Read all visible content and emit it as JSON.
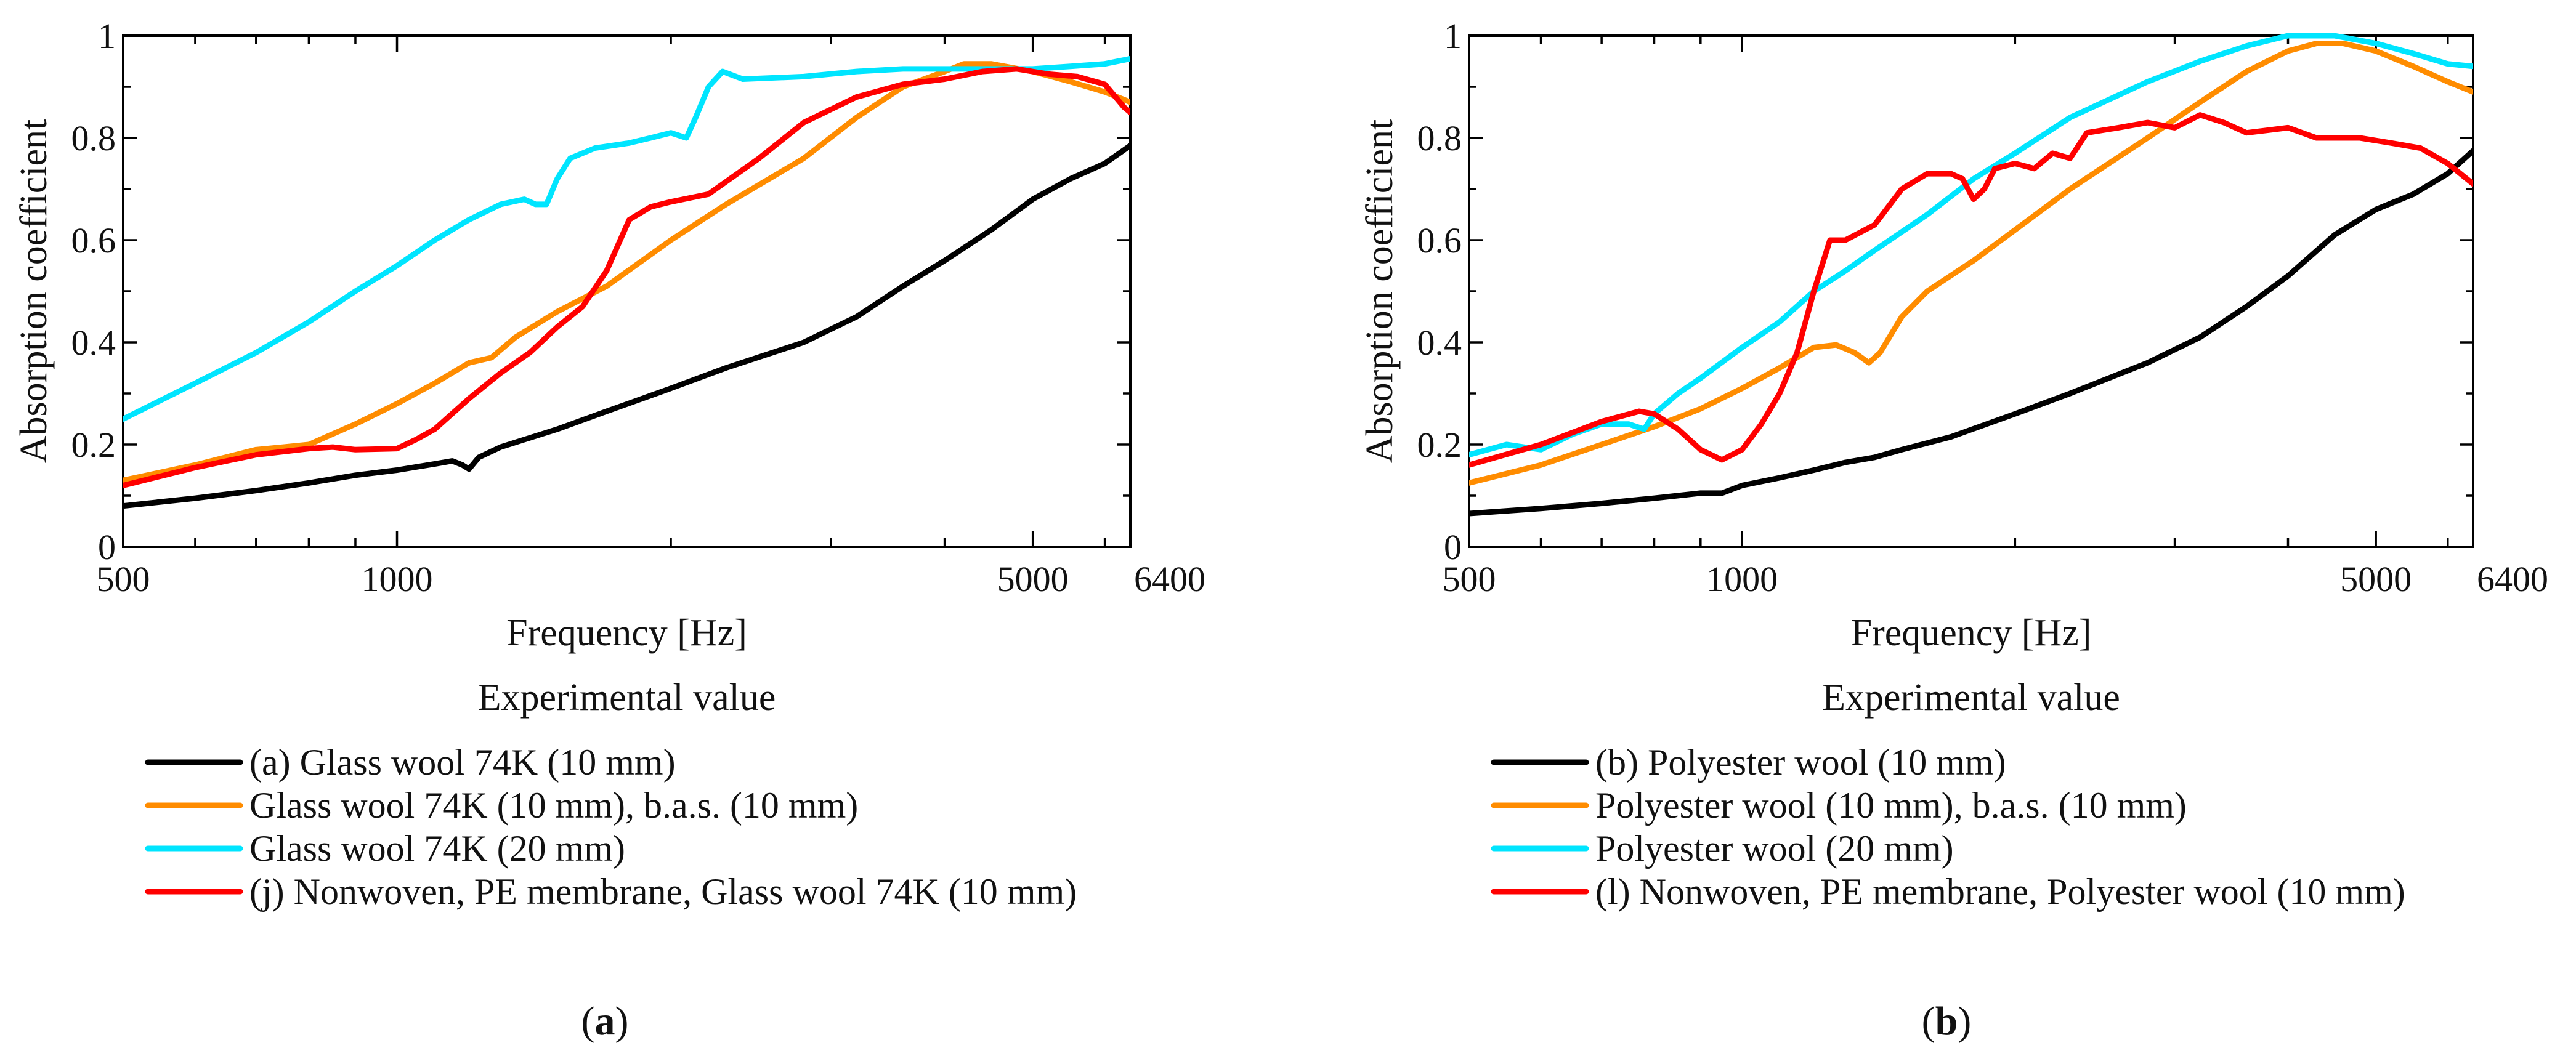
{
  "chart_data": [
    {
      "type": "line",
      "panel_label": "a",
      "subtitle": "Experimental value",
      "xlabel": "Frequency [Hz]",
      "ylabel": "Absorption coefficient",
      "xscale": "log",
      "xlim": [
        500,
        6400
      ],
      "ylim": [
        0,
        1
      ],
      "xticks": [
        500,
        1000,
        5000,
        6400
      ],
      "yticks": [
        0,
        0.2,
        0.4,
        0.6,
        0.8,
        1
      ],
      "ytick_labels": [
        "0",
        "0.2",
        "0.4",
        "0.6",
        "0.8",
        "1"
      ],
      "legend_position": "below",
      "series": [
        {
          "name": "(a) Glass wool 74K (10 mm)",
          "color": "#000000",
          "points": [
            [
              500,
              0.08
            ],
            [
              600,
              0.095
            ],
            [
              700,
              0.11
            ],
            [
              800,
              0.125
            ],
            [
              900,
              0.14
            ],
            [
              1000,
              0.15
            ],
            [
              1100,
              0.162
            ],
            [
              1150,
              0.168
            ],
            [
              1180,
              0.16
            ],
            [
              1200,
              0.152
            ],
            [
              1230,
              0.175
            ],
            [
              1300,
              0.195
            ],
            [
              1500,
              0.23
            ],
            [
              1700,
              0.265
            ],
            [
              2000,
              0.31
            ],
            [
              2300,
              0.35
            ],
            [
              2800,
              0.4
            ],
            [
              3200,
              0.45
            ],
            [
              3600,
              0.51
            ],
            [
              4000,
              0.56
            ],
            [
              4500,
              0.62
            ],
            [
              5000,
              0.68
            ],
            [
              5500,
              0.72
            ],
            [
              6000,
              0.75
            ],
            [
              6400,
              0.785
            ]
          ]
        },
        {
          "name": "Glass wool 74K (10 mm), b.a.s. (10 mm)",
          "color": "#ff8c00",
          "points": [
            [
              500,
              0.13
            ],
            [
              600,
              0.16
            ],
            [
              700,
              0.19
            ],
            [
              750,
              0.195
            ],
            [
              800,
              0.2
            ],
            [
              900,
              0.24
            ],
            [
              1000,
              0.28
            ],
            [
              1100,
              0.32
            ],
            [
              1200,
              0.36
            ],
            [
              1270,
              0.37
            ],
            [
              1350,
              0.41
            ],
            [
              1500,
              0.46
            ],
            [
              1700,
              0.51
            ],
            [
              2000,
              0.6
            ],
            [
              2300,
              0.67
            ],
            [
              2800,
              0.76
            ],
            [
              3200,
              0.84
            ],
            [
              3600,
              0.9
            ],
            [
              4000,
              0.93
            ],
            [
              4200,
              0.945
            ],
            [
              4500,
              0.945
            ],
            [
              5000,
              0.93
            ],
            [
              5500,
              0.91
            ],
            [
              6000,
              0.89
            ],
            [
              6400,
              0.87
            ]
          ]
        },
        {
          "name": "Glass wool 74K (20 mm)",
          "color": "#00e5ff",
          "points": [
            [
              500,
              0.25
            ],
            [
              600,
              0.32
            ],
            [
              700,
              0.38
            ],
            [
              800,
              0.44
            ],
            [
              900,
              0.5
            ],
            [
              1000,
              0.55
            ],
            [
              1100,
              0.6
            ],
            [
              1200,
              0.64
            ],
            [
              1300,
              0.67
            ],
            [
              1380,
              0.68
            ],
            [
              1420,
              0.67
            ],
            [
              1460,
              0.67
            ],
            [
              1500,
              0.72
            ],
            [
              1550,
              0.76
            ],
            [
              1650,
              0.78
            ],
            [
              1800,
              0.79
            ],
            [
              1900,
              0.8
            ],
            [
              2000,
              0.81
            ],
            [
              2080,
              0.8
            ],
            [
              2130,
              0.84
            ],
            [
              2200,
              0.9
            ],
            [
              2280,
              0.93
            ],
            [
              2400,
              0.915
            ],
            [
              2800,
              0.92
            ],
            [
              3200,
              0.93
            ],
            [
              3600,
              0.935
            ],
            [
              4000,
              0.935
            ],
            [
              4500,
              0.935
            ],
            [
              5000,
              0.935
            ],
            [
              5500,
              0.94
            ],
            [
              6000,
              0.945
            ],
            [
              6400,
              0.955
            ]
          ]
        },
        {
          "name": "(j) Nonwoven, PE membrane, Glass wool 74K (10 mm)",
          "color": "#ff0000",
          "points": [
            [
              500,
              0.12
            ],
            [
              600,
              0.155
            ],
            [
              700,
              0.18
            ],
            [
              800,
              0.192
            ],
            [
              850,
              0.195
            ],
            [
              900,
              0.19
            ],
            [
              1000,
              0.192
            ],
            [
              1050,
              0.21
            ],
            [
              1100,
              0.23
            ],
            [
              1200,
              0.29
            ],
            [
              1300,
              0.34
            ],
            [
              1400,
              0.38
            ],
            [
              1500,
              0.43
            ],
            [
              1600,
              0.47
            ],
            [
              1700,
              0.54
            ],
            [
              1800,
              0.64
            ],
            [
              1900,
              0.665
            ],
            [
              2000,
              0.675
            ],
            [
              2200,
              0.69
            ],
            [
              2500,
              0.76
            ],
            [
              2800,
              0.83
            ],
            [
              3200,
              0.88
            ],
            [
              3600,
              0.905
            ],
            [
              4000,
              0.915
            ],
            [
              4400,
              0.93
            ],
            [
              4800,
              0.935
            ],
            [
              5200,
              0.925
            ],
            [
              5600,
              0.92
            ],
            [
              6000,
              0.905
            ],
            [
              6300,
              0.86
            ],
            [
              6400,
              0.85
            ]
          ]
        }
      ]
    },
    {
      "type": "line",
      "panel_label": "b",
      "subtitle": "Experimental value",
      "xlabel": "Frequency [Hz]",
      "ylabel": "Absorption coefficient",
      "xscale": "log",
      "xlim": [
        500,
        6400
      ],
      "ylim": [
        0,
        1
      ],
      "xticks": [
        500,
        1000,
        5000,
        6400
      ],
      "yticks": [
        0,
        0.2,
        0.4,
        0.6,
        0.8,
        1
      ],
      "ytick_labels": [
        "0",
        "0.2",
        "0.4",
        "0.6",
        "0.8",
        "1"
      ],
      "legend_position": "below",
      "series": [
        {
          "name": "(b) Polyester wool (10 mm)",
          "color": "#000000",
          "points": [
            [
              500,
              0.065
            ],
            [
              600,
              0.075
            ],
            [
              700,
              0.085
            ],
            [
              800,
              0.095
            ],
            [
              900,
              0.105
            ],
            [
              950,
              0.105
            ],
            [
              1000,
              0.12
            ],
            [
              1100,
              0.135
            ],
            [
              1200,
              0.15
            ],
            [
              1300,
              0.165
            ],
            [
              1400,
              0.175
            ],
            [
              1500,
              0.19
            ],
            [
              1700,
              0.215
            ],
            [
              2000,
              0.26
            ],
            [
              2300,
              0.3
            ],
            [
              2800,
              0.36
            ],
            [
              3200,
              0.41
            ],
            [
              3600,
              0.47
            ],
            [
              4000,
              0.53
            ],
            [
              4500,
              0.61
            ],
            [
              5000,
              0.66
            ],
            [
              5500,
              0.69
            ],
            [
              6000,
              0.73
            ],
            [
              6400,
              0.775
            ]
          ]
        },
        {
          "name": "Polyester wool (10 mm), b.a.s. (10 mm)",
          "color": "#ff8c00",
          "points": [
            [
              500,
              0.125
            ],
            [
              600,
              0.16
            ],
            [
              700,
              0.2
            ],
            [
              800,
              0.235
            ],
            [
              900,
              0.27
            ],
            [
              1000,
              0.31
            ],
            [
              1100,
              0.35
            ],
            [
              1200,
              0.39
            ],
            [
              1270,
              0.395
            ],
            [
              1330,
              0.38
            ],
            [
              1380,
              0.36
            ],
            [
              1420,
              0.38
            ],
            [
              1500,
              0.45
            ],
            [
              1600,
              0.5
            ],
            [
              1800,
              0.56
            ],
            [
              2000,
              0.62
            ],
            [
              2300,
              0.7
            ],
            [
              2800,
              0.8
            ],
            [
              3200,
              0.87
            ],
            [
              3600,
              0.93
            ],
            [
              4000,
              0.97
            ],
            [
              4300,
              0.985
            ],
            [
              4600,
              0.985
            ],
            [
              5000,
              0.97
            ],
            [
              5500,
              0.94
            ],
            [
              6000,
              0.91
            ],
            [
              6400,
              0.89
            ]
          ]
        },
        {
          "name": "Polyester wool (20 mm)",
          "color": "#00e5ff",
          "points": [
            [
              500,
              0.18
            ],
            [
              550,
              0.2
            ],
            [
              600,
              0.19
            ],
            [
              650,
              0.22
            ],
            [
              700,
              0.24
            ],
            [
              750,
              0.24
            ],
            [
              780,
              0.23
            ],
            [
              800,
              0.26
            ],
            [
              850,
              0.3
            ],
            [
              900,
              0.33
            ],
            [
              1000,
              0.39
            ],
            [
              1100,
              0.44
            ],
            [
              1200,
              0.5
            ],
            [
              1300,
              0.54
            ],
            [
              1400,
              0.58
            ],
            [
              1600,
              0.65
            ],
            [
              1800,
              0.72
            ],
            [
              2000,
              0.77
            ],
            [
              2300,
              0.84
            ],
            [
              2800,
              0.91
            ],
            [
              3200,
              0.95
            ],
            [
              3600,
              0.98
            ],
            [
              4000,
              1.0
            ],
            [
              4500,
              1.0
            ],
            [
              5000,
              0.985
            ],
            [
              5500,
              0.965
            ],
            [
              6000,
              0.945
            ],
            [
              6400,
              0.94
            ]
          ]
        },
        {
          "name": "(l) Nonwoven, PE membrane, Polyester wool (10 mm)",
          "color": "#ff0000",
          "points": [
            [
              500,
              0.16
            ],
            [
              600,
              0.2
            ],
            [
              700,
              0.245
            ],
            [
              770,
              0.265
            ],
            [
              800,
              0.26
            ],
            [
              850,
              0.23
            ],
            [
              900,
              0.19
            ],
            [
              950,
              0.17
            ],
            [
              1000,
              0.19
            ],
            [
              1050,
              0.24
            ],
            [
              1100,
              0.3
            ],
            [
              1150,
              0.38
            ],
            [
              1200,
              0.5
            ],
            [
              1250,
              0.6
            ],
            [
              1300,
              0.6
            ],
            [
              1400,
              0.63
            ],
            [
              1500,
              0.7
            ],
            [
              1600,
              0.73
            ],
            [
              1700,
              0.73
            ],
            [
              1750,
              0.72
            ],
            [
              1800,
              0.68
            ],
            [
              1850,
              0.7
            ],
            [
              1900,
              0.74
            ],
            [
              2000,
              0.75
            ],
            [
              2100,
              0.74
            ],
            [
              2200,
              0.77
            ],
            [
              2300,
              0.76
            ],
            [
              2400,
              0.81
            ],
            [
              2600,
              0.82
            ],
            [
              2800,
              0.83
            ],
            [
              3000,
              0.82
            ],
            [
              3200,
              0.845
            ],
            [
              3400,
              0.83
            ],
            [
              3600,
              0.81
            ],
            [
              4000,
              0.82
            ],
            [
              4300,
              0.8
            ],
            [
              4800,
              0.8
            ],
            [
              5200,
              0.79
            ],
            [
              5600,
              0.78
            ],
            [
              6000,
              0.75
            ],
            [
              6400,
              0.71
            ]
          ]
        }
      ]
    }
  ]
}
